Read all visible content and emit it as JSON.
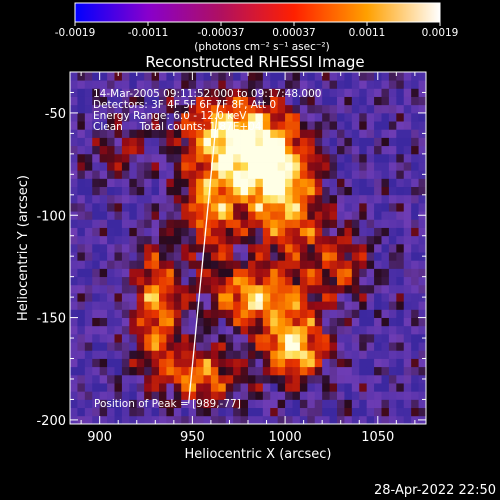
{
  "chart_data": {
    "type": "heatmap",
    "title": "Reconstructed RHESSI Image",
    "colorbar": {
      "ticks": [
        "-0.0019",
        "-0.0011",
        "-0.00037",
        "0.00037",
        "0.0011",
        "0.0019"
      ],
      "range": [
        -0.0019,
        0.0019
      ],
      "unit_label": "(photons cm⁻² s⁻¹ asec⁻²)",
      "colors": [
        "#0000ff",
        "#8800cc",
        "#b01060",
        "#ff2000",
        "#ffa000",
        "#ffffff"
      ]
    },
    "xlabel": "Heliocentric X (arcsec)",
    "ylabel": "Heliocentric Y (arcsec)",
    "xlim": [
      884,
      1076
    ],
    "ylim": [
      -202,
      -30
    ],
    "xticks": [
      "900",
      "950",
      "1000",
      "1050"
    ],
    "yticks": [
      "-50",
      "-100",
      "-150",
      "-200"
    ],
    "info_lines": [
      "14-Mar-2005 09:11:52.000 to 09:17:48.000",
      "Detectors: 3F 4F 5F 6F 7F 8F, Att 0",
      "Energy Range: 6.0 - 12.0 keV",
      "Clean     Total counts: 1.87E+04"
    ],
    "peak_label": "Position of Peak = [989,-77]",
    "peak": [
      989,
      -77
    ],
    "sources": [
      {
        "x": 990,
        "y": -75,
        "sx": 16,
        "sy": 14,
        "v": 1.0
      },
      {
        "x": 970,
        "y": -58,
        "sx": 20,
        "sy": 12,
        "v": 0.8
      },
      {
        "x": 960,
        "y": -95,
        "sx": 12,
        "sy": 18,
        "v": 0.7
      },
      {
        "x": 1002,
        "y": -100,
        "sx": 14,
        "sy": 16,
        "v": 0.65
      },
      {
        "x": 985,
        "y": -140,
        "sx": 18,
        "sy": 10,
        "v": 0.85
      },
      {
        "x": 1005,
        "y": -165,
        "sx": 12,
        "sy": 12,
        "v": 0.95
      },
      {
        "x": 930,
        "y": -145,
        "sx": 9,
        "sy": 22,
        "v": 0.75
      },
      {
        "x": 955,
        "y": -178,
        "sx": 14,
        "sy": 10,
        "v": 0.7
      },
      {
        "x": 1030,
        "y": -125,
        "sx": 12,
        "sy": 12,
        "v": 0.45
      },
      {
        "x": 910,
        "y": -70,
        "sx": 10,
        "sy": 10,
        "v": 0.35
      }
    ],
    "limb_line": [
      [
        948,
        -192
      ],
      [
        964,
        -44
      ]
    ]
  },
  "footer_date": "28-Apr-2022 22:50"
}
